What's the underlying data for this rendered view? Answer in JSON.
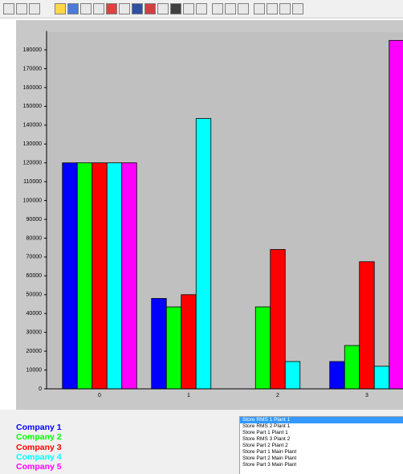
{
  "chart_data": {
    "type": "bar",
    "categories": [
      "0",
      "1",
      "2",
      "3"
    ],
    "series": [
      {
        "name": "Company 1",
        "color": "#0000ff",
        "values": [
          120000,
          48000,
          0,
          14500
        ]
      },
      {
        "name": "Company 2",
        "color": "#00ff00",
        "values": [
          120000,
          43500,
          43500,
          23000
        ]
      },
      {
        "name": "Company 3",
        "color": "#ff0000",
        "values": [
          120000,
          50000,
          74000,
          67500
        ]
      },
      {
        "name": "Company 4",
        "color": "#00ffff",
        "values": [
          120000,
          143500,
          14500,
          12000
        ]
      },
      {
        "name": "Company 5",
        "color": "#ff00ff",
        "values": [
          120000,
          0,
          0,
          185000
        ]
      }
    ],
    "ylim": [
      0,
      190000
    ],
    "yticks": [
      0,
      10000,
      20000,
      30000,
      40000,
      50000,
      60000,
      70000,
      80000,
      90000,
      100000,
      110000,
      120000,
      130000,
      140000,
      150000,
      160000,
      170000,
      180000
    ],
    "grid": false
  },
  "listbox": {
    "items": [
      "Store RMS 1 Plant 1",
      "Store RMS 2 Plant 1",
      "Store Part 1 Plant 1",
      "Store RMS 3 Plant 2",
      "Store Part 2 Plant 2",
      "Store Part 1 Main Plant",
      "Store Part 2 Main Plant",
      "Store Part 3 Main Plant"
    ],
    "selected": 0
  }
}
